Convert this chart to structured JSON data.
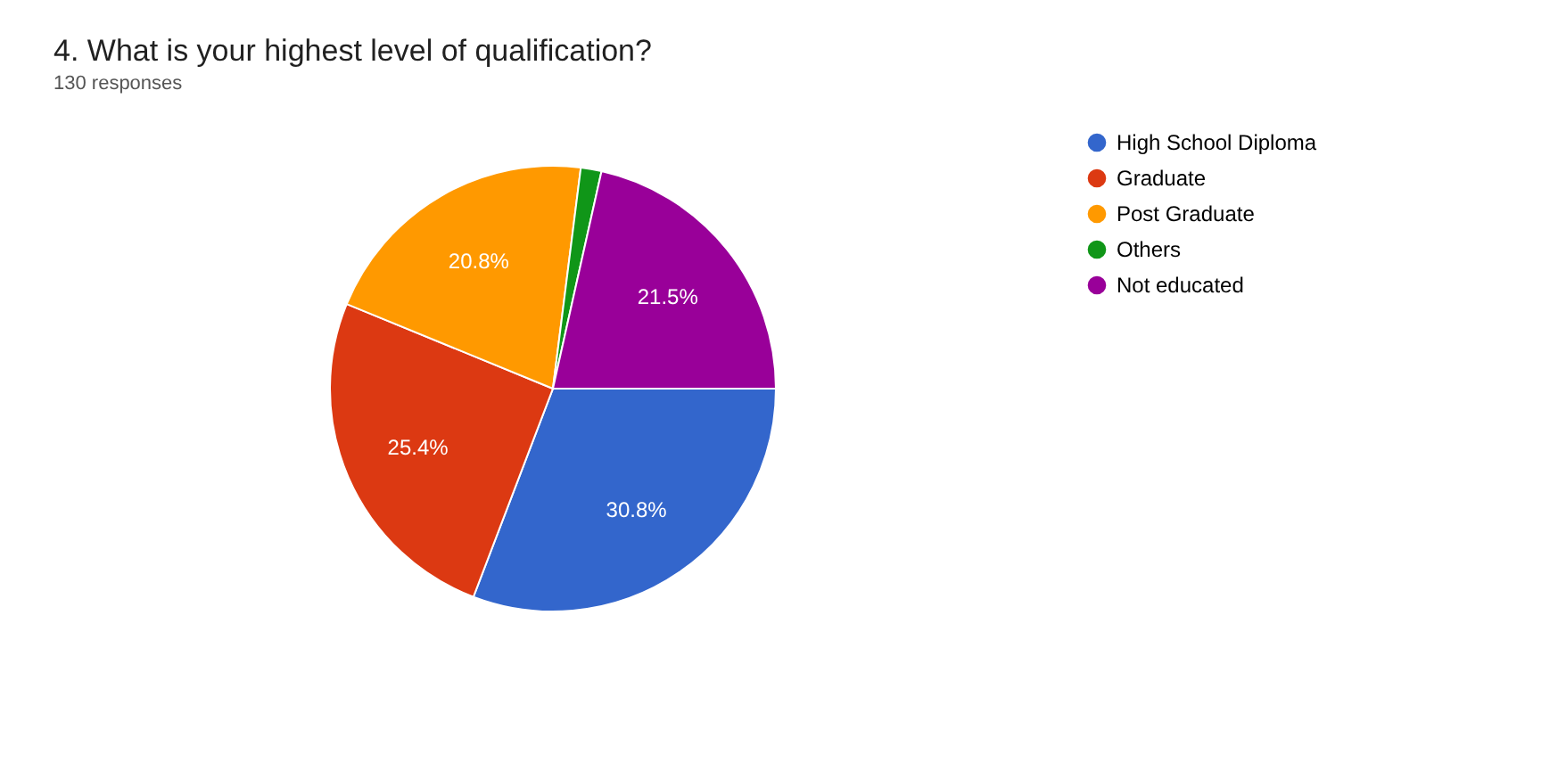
{
  "chart_data": {
    "type": "pie",
    "title": "4. What is your highest level of qualification?",
    "subtitle": "130 responses",
    "categories": [
      "High School Diploma",
      "Graduate",
      "Post Graduate",
      "Others",
      "Not educated"
    ],
    "values": [
      30.8,
      25.4,
      20.8,
      1.5,
      21.5
    ],
    "colors": [
      "#3366cc",
      "#dc3912",
      "#ff9900",
      "#109618",
      "#990099"
    ],
    "value_labels": [
      "30.8%",
      "25.4%",
      "20.8%",
      null,
      "21.5%"
    ],
    "legend": "right"
  }
}
